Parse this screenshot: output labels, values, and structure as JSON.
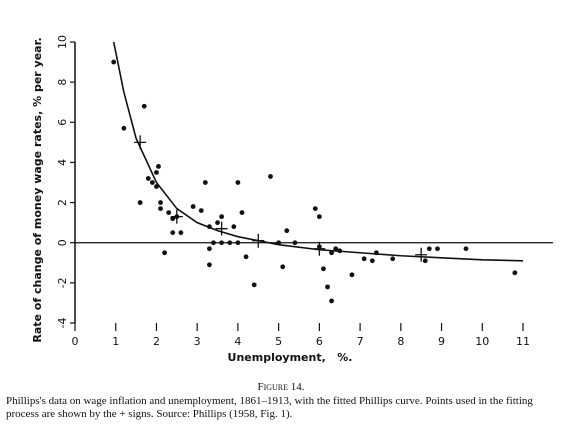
{
  "chart_data": {
    "type": "scatter",
    "ylabel": "Rate of change of money wage rates, % per year.",
    "xlabel": "Unemployment,   %.",
    "xlim": [
      0,
      11
    ],
    "ylim": [
      -4,
      10
    ],
    "xticks": [
      0,
      1,
      2,
      3,
      4,
      5,
      6,
      7,
      8,
      9,
      10,
      11
    ],
    "yticks": [
      -4,
      -2,
      0,
      2,
      4,
      6,
      8,
      10
    ],
    "color": "#111111",
    "points": {
      "x": [
        0.95,
        1.2,
        1.7,
        1.6,
        1.8,
        1.9,
        2.0,
        2.05,
        2.0,
        2.1,
        2.1,
        2.2,
        2.3,
        2.4,
        2.5,
        2.4,
        2.6,
        2.9,
        3.2,
        3.1,
        3.3,
        3.3,
        3.3,
        3.4,
        3.5,
        3.6,
        3.6,
        3.8,
        4.0,
        3.9,
        4.0,
        4.2,
        4.1,
        4.4,
        4.8,
        5.0,
        5.1,
        5.2,
        5.4,
        5.9,
        6.0,
        6.0,
        6.1,
        6.2,
        6.3,
        6.4,
        6.5,
        6.8,
        7.1,
        7.3,
        7.4,
        7.8,
        8.7,
        8.9,
        8.6,
        9.6,
        10.8,
        6.3
      ],
      "y": [
        9.0,
        5.7,
        6.8,
        2.0,
        3.2,
        3.0,
        3.5,
        3.8,
        2.8,
        2.0,
        1.7,
        -0.5,
        1.5,
        1.2,
        1.3,
        0.5,
        0.5,
        1.8,
        3.0,
        1.6,
        0.8,
        -0.3,
        -1.1,
        0,
        1.0,
        1.3,
        0,
        0,
        3.0,
        0.8,
        0,
        -0.7,
        1.5,
        -2.1,
        3.3,
        0,
        -1.2,
        0.6,
        0,
        1.7,
        -0.2,
        1.3,
        -1.3,
        -2.2,
        -0.5,
        -0.3,
        -0.4,
        -1.6,
        -0.8,
        -0.9,
        -0.5,
        -0.8,
        -0.3,
        -0.3,
        -0.9,
        -0.3,
        -1.5,
        -2.9
      ]
    },
    "fit_points": {
      "x": [
        1.6,
        2.5,
        3.6,
        4.5,
        6.0,
        8.5
      ],
      "y": [
        5.0,
        1.3,
        0.7,
        0.1,
        -0.3,
        -0.6
      ]
    },
    "curve": {
      "x": [
        0.95,
        1.2,
        1.5,
        2,
        2.5,
        3,
        3.5,
        4,
        5,
        6,
        7,
        8,
        9,
        10,
        11
      ],
      "y": [
        10,
        7.5,
        5.2,
        3.0,
        1.7,
        1.0,
        0.6,
        0.3,
        -0.1,
        -0.35,
        -0.5,
        -0.65,
        -0.75,
        -0.85,
        -0.9
      ]
    },
    "zero_line": true
  },
  "caption": {
    "label": "Figure 14.",
    "text": "Phillips's data on wage inflation and unemployment, 1861–1913, with the fitted Phillips curve. Points used in the fitting process are shown by the + signs. Source: Phillips (1958, Fig. 1)."
  }
}
